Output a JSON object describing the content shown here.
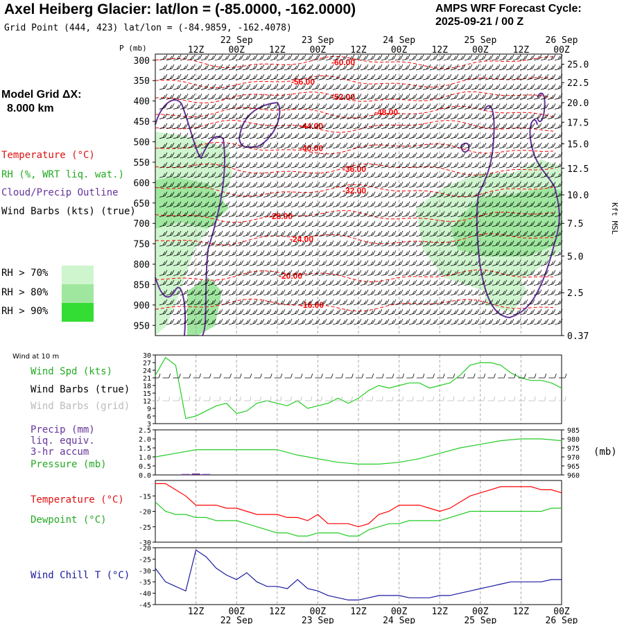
{
  "header": {
    "title": "Axel Heiberg Glacier:  lat/lon = (-85.0000, -162.0000)",
    "subtitle": "Grid Point (444, 423) lat/lon = (-84.9859, -162.4078)",
    "cycle_line1": "AMPS WRF Forecast Cycle:",
    "cycle_line2": "2025-09-21 / 00  Z"
  },
  "model_grid": {
    "label": "Model Grid ΔX:",
    "value": "8.000 km"
  },
  "legend": {
    "temperature": "Temperature (°C)",
    "rh": "RH (%, WRT liq. wat.)",
    "cloud": "Cloud/Precip Outline",
    "wind": "Wind Barbs (kts) (true)",
    "rh70": "RH > 70%",
    "rh80": "RH > 80%",
    "rh90": "RH > 90%"
  },
  "colors": {
    "temperature": "#ff0000",
    "rh_label": "#22aa22",
    "cloud": "#663399",
    "green_line": "#22cc22",
    "dewpoint": "#22cc22",
    "windchill": "#1a1aa0",
    "rh70": "#cff5cf",
    "rh80": "#9fe79f",
    "rh90": "#33dd33",
    "grid_dash": "#aaaaaa"
  },
  "time_axis": {
    "top_hour_labels": [
      "12Z",
      "00Z",
      "12Z",
      "00Z",
      "12Z",
      "00Z",
      "12Z",
      "00Z",
      "12Z",
      "00Z"
    ],
    "top_date_labels": [
      "22 Sep",
      "23 Sep",
      "24 Sep",
      "25 Sep",
      "26 Sep"
    ],
    "bottom_hour_labels": [
      "12Z",
      "00Z",
      "12Z",
      "00Z",
      "12Z",
      "00Z",
      "12Z",
      "00Z",
      "12Z",
      "00Z"
    ],
    "bottom_date_labels": [
      "22 Sep",
      "23 Sep",
      "24 Sep",
      "25 Sep",
      "26 Sep"
    ]
  },
  "profile": {
    "ylabel": "P (mb)",
    "pressure_ticks": [
      "300",
      "350",
      "400",
      "450",
      "500",
      "550",
      "600",
      "650",
      "700",
      "750",
      "800",
      "850",
      "900",
      "950"
    ],
    "right_label": "Kft MSL",
    "right_ticks": [
      "25.0",
      "22.5",
      "20.0",
      "17.5",
      "15.0",
      "12.5",
      "10.0",
      "7.5",
      "5.0",
      "2.5",
      "0.37"
    ],
    "isotherm_labels": [
      "-60.00",
      "-56.00",
      "-52.00",
      "-48.00",
      "-44.00",
      "-40.00",
      "-36.00",
      "-32.00",
      "-28.00",
      "-24.00",
      "-20.00",
      "-16.00"
    ]
  },
  "wind10": {
    "section_label": "Wind at 10 m",
    "speed_label": "Wind Spd (kts)",
    "barbs_true_label": "Wind Barbs (true)",
    "barbs_grid_label": "Wind Barbs (grid)",
    "yticks": [
      "30",
      "27",
      "24",
      "21",
      "18",
      "15",
      "12",
      "9",
      "6",
      "3"
    ]
  },
  "precip": {
    "label1": "Precip (mm)",
    "label2": "liq. equiv.",
    "label3": "3-hr accum",
    "pressure_label": "Pressure (mb)",
    "left_ticks": [
      "2.5",
      "2.0",
      "1.5",
      "1.0",
      "0.5",
      "0.0"
    ],
    "right_ticks": [
      "985",
      "980",
      "975",
      "970",
      "965",
      "960"
    ],
    "right_unit": "(mb)"
  },
  "temp": {
    "temp_label": "Temperature (°C)",
    "dew_label": "Dewpoint (°C)",
    "yticks": [
      "-15",
      "-20",
      "-25",
      "-30"
    ]
  },
  "chill": {
    "label": "Wind Chill T (°C)",
    "yticks": [
      "-20",
      "-25",
      "-30",
      "-35",
      "-40",
      "-45"
    ]
  },
  "chart_data": [
    {
      "type": "line",
      "name": "wind_speed_10m",
      "ylim": [
        3,
        30
      ],
      "x_hours": [
        0,
        3,
        6,
        9,
        12,
        15,
        18,
        21,
        24,
        27,
        30,
        33,
        36,
        39,
        42,
        45,
        48,
        51,
        54,
        57,
        60,
        63,
        66,
        69,
        72,
        75,
        78,
        81,
        84,
        87,
        90,
        93,
        96,
        99,
        102,
        105,
        108,
        111,
        114,
        117,
        120
      ],
      "values": [
        22,
        29,
        26,
        5,
        6,
        8,
        10,
        11,
        7,
        8,
        11,
        12,
        11,
        10,
        12,
        9,
        10,
        11,
        13,
        11,
        13,
        16,
        18,
        17,
        18,
        19,
        19,
        17,
        18,
        19,
        22,
        26,
        27,
        27,
        26,
        23,
        21,
        20,
        20,
        19,
        17
      ]
    },
    {
      "type": "line",
      "name": "sea_level_pressure_mb",
      "ylim": [
        960,
        985
      ],
      "x_hours": [
        0,
        6,
        12,
        18,
        24,
        30,
        36,
        42,
        48,
        54,
        60,
        66,
        72,
        78,
        84,
        90,
        96,
        102,
        108,
        114,
        120
      ],
      "values": [
        970,
        972,
        974,
        974,
        974,
        974,
        974,
        971,
        969,
        967,
        966,
        966,
        967,
        969,
        972,
        975,
        977,
        979,
        980,
        980,
        979
      ]
    },
    {
      "type": "bar",
      "name": "precip_3hr_mm",
      "ylim": [
        0,
        2.5
      ],
      "x_hours": [
        9,
        12,
        15
      ],
      "values": [
        0.05,
        0.08,
        0.05
      ]
    },
    {
      "type": "line",
      "name": "temperature_c",
      "ylim": [
        -30,
        -10
      ],
      "x_hours": [
        0,
        3,
        6,
        9,
        12,
        15,
        18,
        21,
        24,
        27,
        30,
        33,
        36,
        39,
        42,
        45,
        48,
        51,
        54,
        57,
        60,
        63,
        66,
        69,
        72,
        75,
        78,
        81,
        84,
        87,
        90,
        93,
        96,
        99,
        102,
        105,
        108,
        111,
        114,
        117,
        120
      ],
      "values": [
        -11,
        -11,
        -13,
        -15,
        -18,
        -18,
        -18,
        -19,
        -19,
        -20,
        -21,
        -21,
        -21,
        -22,
        -22,
        -23,
        -21,
        -24,
        -24,
        -24,
        -25,
        -24,
        -21,
        -20,
        -18,
        -18,
        -18,
        -19,
        -20,
        -19,
        -17,
        -15,
        -14,
        -13,
        -12,
        -12,
        -12,
        -12,
        -13,
        -13,
        -14
      ]
    },
    {
      "type": "line",
      "name": "dewpoint_c",
      "ylim": [
        -30,
        -10
      ],
      "x_hours": [
        0,
        3,
        6,
        9,
        12,
        15,
        18,
        21,
        24,
        27,
        30,
        33,
        36,
        39,
        42,
        45,
        48,
        51,
        54,
        57,
        60,
        63,
        66,
        69,
        72,
        75,
        78,
        81,
        84,
        87,
        90,
        93,
        96,
        99,
        102,
        105,
        108,
        111,
        114,
        117,
        120
      ],
      "values": [
        -17,
        -20,
        -21,
        -21,
        -22,
        -22,
        -23,
        -23,
        -23,
        -24,
        -25,
        -26,
        -27,
        -27,
        -28,
        -28,
        -27,
        -27,
        -27,
        -28,
        -28,
        -26,
        -25,
        -24,
        -24,
        -23,
        -23,
        -23,
        -23,
        -22,
        -21,
        -20,
        -20,
        -20,
        -20,
        -20,
        -20,
        -20,
        -20,
        -19,
        -19
      ]
    },
    {
      "type": "line",
      "name": "wind_chill_c",
      "ylim": [
        -45,
        -20
      ],
      "x_hours": [
        0,
        3,
        6,
        9,
        12,
        15,
        18,
        21,
        24,
        27,
        30,
        33,
        36,
        39,
        42,
        45,
        48,
        51,
        54,
        57,
        60,
        63,
        66,
        69,
        72,
        75,
        78,
        81,
        84,
        87,
        90,
        93,
        96,
        99,
        102,
        105,
        108,
        111,
        114,
        117,
        120
      ],
      "values": [
        -29,
        -35,
        -37,
        -39,
        -21,
        -24,
        -29,
        -32,
        -34,
        -31,
        -35,
        -37,
        -37,
        -38,
        -34,
        -38,
        -39,
        -41,
        -42,
        -43,
        -43,
        -42,
        -41,
        -41,
        -41,
        -42,
        -42,
        -42,
        -41,
        -41,
        -40,
        -39,
        -38,
        -37,
        -36,
        -35,
        -35,
        -35,
        -35,
        -34,
        -34
      ]
    }
  ]
}
